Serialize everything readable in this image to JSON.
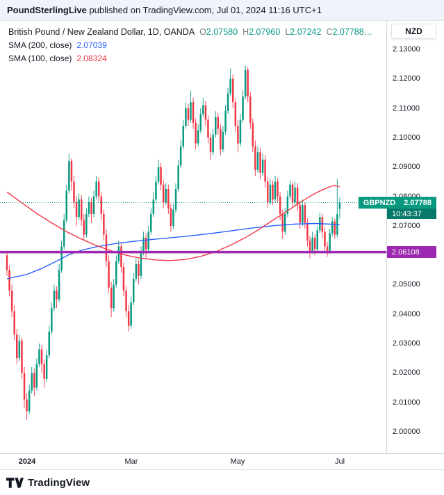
{
  "banner": {
    "brand": "PoundSterlingLive",
    "text": " published on TradingView.com, Jul 01, 2024 11:16 UTC+1"
  },
  "legend": {
    "title": "British Pound / New Zealand Dollar, 1D, OANDA",
    "ohlc": [
      {
        "k": "O",
        "v": "2.07580"
      },
      {
        "k": "H",
        "v": "2.07960"
      },
      {
        "k": "L",
        "v": "2.07242"
      },
      {
        "k": "C",
        "v": "2.07788…"
      }
    ],
    "sma200": {
      "label": "SMA (200, close)",
      "value": "2.07039",
      "color": "#2962ff"
    },
    "sma100": {
      "label": "SMA (100, close)",
      "value": "2.08324",
      "color": "#f23645"
    }
  },
  "axis": {
    "currency": "NZD",
    "price_badge": {
      "symbol": "GBPNZD",
      "price": "2.07788",
      "countdown": "10:43:37",
      "color": "#089981"
    },
    "level_badge": {
      "price": "2.06108",
      "color": "#9c27b0"
    }
  },
  "footer": {
    "brand": "TradingView"
  },
  "chart_data": {
    "type": "candlestick",
    "title": "British Pound / New Zealand Dollar",
    "symbol": "GBPNZD",
    "timeframe": "1D",
    "exchange": "OANDA",
    "ylim": [
      2.0,
      2.13
    ],
    "y_ticks": [
      "2.13000",
      "2.12000",
      "2.11000",
      "2.10000",
      "2.09000",
      "2.08000",
      "2.07000",
      "2.06000",
      "2.05000",
      "2.04000",
      "2.03000",
      "2.02000",
      "2.01000",
      "2.00000"
    ],
    "x_axis_labels": [
      {
        "text": "2024",
        "index": 8,
        "bold": true
      },
      {
        "text": "Mar",
        "index": 50,
        "bold": false
      },
      {
        "text": "May",
        "index": 93,
        "bold": false
      },
      {
        "text": "Jul",
        "index": 134,
        "bold": false
      }
    ],
    "last_price": 2.07788,
    "up_color": "#089981",
    "down_color": "#f23645",
    "levels": [
      {
        "name": "support-line",
        "price": 2.06108,
        "color": "#9c27b0"
      }
    ],
    "overlays": [
      {
        "name": "SMA 200",
        "color": "#2962ff",
        "points": [
          [
            0,
            2.052
          ],
          [
            8,
            2.0535
          ],
          [
            14,
            2.0555
          ],
          [
            20,
            2.058
          ],
          [
            25,
            2.0602
          ],
          [
            30,
            2.0617
          ],
          [
            36,
            2.0629
          ],
          [
            44,
            2.064
          ],
          [
            52,
            2.0648
          ],
          [
            60,
            2.0655
          ],
          [
            68,
            2.0661
          ],
          [
            76,
            2.0668
          ],
          [
            84,
            2.0676
          ],
          [
            92,
            2.0685
          ],
          [
            100,
            2.0694
          ],
          [
            108,
            2.0701
          ],
          [
            116,
            2.0706
          ],
          [
            124,
            2.0708
          ],
          [
            130,
            2.0706
          ],
          [
            134,
            2.0704
          ]
        ]
      },
      {
        "name": "SMA 100",
        "color": "#f23645",
        "points": [
          [
            0,
            2.0815
          ],
          [
            6,
            2.0778
          ],
          [
            12,
            2.0742
          ],
          [
            18,
            2.071
          ],
          [
            24,
            2.068
          ],
          [
            30,
            2.0655
          ],
          [
            36,
            2.0633
          ],
          [
            42,
            2.0615
          ],
          [
            48,
            2.06
          ],
          [
            54,
            2.059
          ],
          [
            60,
            2.0584
          ],
          [
            66,
            2.0582
          ],
          [
            72,
            2.0586
          ],
          [
            78,
            2.0596
          ],
          [
            84,
            2.0612
          ],
          [
            90,
            2.0634
          ],
          [
            96,
            2.066
          ],
          [
            100,
            2.068
          ],
          [
            104,
            2.0702
          ],
          [
            108,
            2.0724
          ],
          [
            112,
            2.0746
          ],
          [
            116,
            2.0768
          ],
          [
            120,
            2.079
          ],
          [
            124,
            2.081
          ],
          [
            127,
            2.0822
          ],
          [
            130,
            2.0833
          ],
          [
            132,
            2.0838
          ],
          [
            134,
            2.0832
          ]
        ]
      }
    ],
    "candles": [
      [
        2.06,
        2.0615,
        2.053,
        2.055
      ],
      [
        2.055,
        2.0565,
        2.046,
        2.048
      ],
      [
        2.048,
        2.05,
        2.039,
        2.041
      ],
      [
        2.041,
        2.043,
        2.031,
        2.033
      ],
      [
        2.033,
        2.035,
        2.023,
        2.025
      ],
      [
        2.025,
        2.033,
        2.024,
        2.031
      ],
      [
        2.031,
        2.032,
        2.018,
        2.02
      ],
      [
        2.02,
        2.022,
        2.008,
        2.011
      ],
      [
        2.011,
        2.013,
        2.004,
        2.007
      ],
      [
        2.007,
        2.016,
        2.006,
        2.014
      ],
      [
        2.014,
        2.022,
        2.013,
        2.02
      ],
      [
        2.02,
        2.0215,
        2.012,
        2.015
      ],
      [
        2.015,
        2.025,
        2.014,
        2.023
      ],
      [
        2.023,
        2.03,
        2.022,
        2.028
      ],
      [
        2.028,
        2.0295,
        2.02,
        2.023
      ],
      [
        2.023,
        2.0245,
        2.015,
        2.018
      ],
      [
        2.018,
        2.028,
        2.017,
        2.026
      ],
      [
        2.026,
        2.036,
        2.025,
        2.034
      ],
      [
        2.034,
        2.044,
        2.033,
        2.042
      ],
      [
        2.042,
        2.05,
        2.041,
        2.048
      ],
      [
        2.048,
        2.0495,
        2.042,
        2.045
      ],
      [
        2.045,
        2.057,
        2.044,
        2.055
      ],
      [
        2.055,
        2.065,
        2.054,
        2.063
      ],
      [
        2.063,
        2.074,
        2.062,
        2.072
      ],
      [
        2.072,
        2.084,
        2.071,
        2.082
      ],
      [
        2.082,
        2.0945,
        2.081,
        2.092
      ],
      [
        2.092,
        2.093,
        2.082,
        2.085
      ],
      [
        2.085,
        2.087,
        2.076,
        2.078
      ],
      [
        2.078,
        2.08,
        2.07,
        2.073
      ],
      [
        2.073,
        2.081,
        2.072,
        2.079
      ],
      [
        2.079,
        2.0805,
        2.07,
        2.072
      ],
      [
        2.072,
        2.074,
        2.065,
        2.067
      ],
      [
        2.067,
        2.076,
        2.066,
        2.074
      ],
      [
        2.074,
        2.08,
        2.073,
        2.078
      ],
      [
        2.078,
        2.0795,
        2.071,
        2.074
      ],
      [
        2.074,
        2.082,
        2.073,
        2.08
      ],
      [
        2.08,
        2.087,
        2.079,
        2.085
      ],
      [
        2.085,
        2.0865,
        2.078,
        2.08
      ],
      [
        2.08,
        2.0815,
        2.072,
        2.074
      ],
      [
        2.074,
        2.0755,
        2.065,
        2.067
      ],
      [
        2.067,
        2.069,
        2.056,
        2.058
      ],
      [
        2.058,
        2.06,
        2.047,
        2.049
      ],
      [
        2.049,
        2.051,
        2.039,
        2.042
      ],
      [
        2.042,
        2.052,
        2.041,
        2.05
      ],
      [
        2.05,
        2.06,
        2.049,
        2.058
      ],
      [
        2.058,
        2.065,
        2.057,
        2.063
      ],
      [
        2.063,
        2.0645,
        2.054,
        2.056
      ],
      [
        2.056,
        2.0575,
        2.046,
        2.048
      ],
      [
        2.048,
        2.0495,
        2.039,
        2.041
      ],
      [
        2.041,
        2.043,
        2.034,
        2.036
      ],
      [
        2.036,
        2.046,
        2.035,
        2.044
      ],
      [
        2.044,
        2.054,
        2.043,
        2.052
      ],
      [
        2.052,
        2.059,
        2.051,
        2.057
      ],
      [
        2.057,
        2.0585,
        2.05,
        2.053
      ],
      [
        2.053,
        2.063,
        2.052,
        2.061
      ],
      [
        2.061,
        2.068,
        2.06,
        2.066
      ],
      [
        2.066,
        2.0675,
        2.059,
        2.062
      ],
      [
        2.062,
        2.07,
        2.061,
        2.068
      ],
      [
        2.068,
        2.076,
        2.067,
        2.074
      ],
      [
        2.074,
        2.0815,
        2.073,
        2.079
      ],
      [
        2.079,
        2.087,
        2.078,
        2.085
      ],
      [
        2.085,
        2.0925,
        2.084,
        2.09
      ],
      [
        2.09,
        2.0915,
        2.082,
        2.084
      ],
      [
        2.084,
        2.0855,
        2.076,
        2.078
      ],
      [
        2.078,
        2.0845,
        2.077,
        2.0825
      ],
      [
        2.0825,
        2.084,
        2.074,
        2.076
      ],
      [
        2.076,
        2.0775,
        2.068,
        2.07
      ],
      [
        2.07,
        2.0775,
        2.069,
        2.0755
      ],
      [
        2.0755,
        2.0845,
        2.0745,
        2.0825
      ],
      [
        2.0825,
        2.0925,
        2.0815,
        2.0905
      ],
      [
        2.0905,
        2.099,
        2.0895,
        2.097
      ],
      [
        2.097,
        2.106,
        2.096,
        2.104
      ],
      [
        2.104,
        2.112,
        2.103,
        2.11
      ],
      [
        2.11,
        2.1115,
        2.104,
        2.106
      ],
      [
        2.106,
        2.116,
        2.105,
        2.112
      ],
      [
        2.112,
        2.1135,
        2.103,
        2.105
      ],
      [
        2.105,
        2.1065,
        2.096,
        2.098
      ],
      [
        2.098,
        2.1045,
        2.097,
        2.1025
      ],
      [
        2.1025,
        2.11,
        2.1015,
        2.108
      ],
      [
        2.108,
        2.1135,
        2.107,
        2.111
      ],
      [
        2.111,
        2.1125,
        2.104,
        2.106
      ],
      [
        2.106,
        2.1075,
        2.098,
        2.1
      ],
      [
        2.1,
        2.1015,
        2.0925,
        2.095
      ],
      [
        2.095,
        2.103,
        2.094,
        2.101
      ],
      [
        2.101,
        2.109,
        2.1,
        2.107
      ],
      [
        2.107,
        2.1085,
        2.101,
        2.103
      ],
      [
        2.103,
        2.1045,
        2.094,
        2.096
      ],
      [
        2.096,
        2.104,
        2.095,
        2.102
      ],
      [
        2.102,
        2.111,
        2.101,
        2.109
      ],
      [
        2.109,
        2.117,
        2.108,
        2.115
      ],
      [
        2.115,
        2.1235,
        2.114,
        2.12
      ],
      [
        2.12,
        2.1215,
        2.11,
        2.112
      ],
      [
        2.112,
        2.1135,
        2.102,
        2.104
      ],
      [
        2.104,
        2.106,
        2.095,
        2.098
      ],
      [
        2.098,
        2.108,
        2.097,
        2.106
      ],
      [
        2.106,
        2.116,
        2.105,
        2.114
      ],
      [
        2.114,
        2.1245,
        2.113,
        2.123
      ],
      [
        2.123,
        2.124,
        2.112,
        2.114
      ],
      [
        2.114,
        2.1155,
        2.103,
        2.105
      ],
      [
        2.105,
        2.1065,
        2.095,
        2.097
      ],
      [
        2.097,
        2.099,
        2.087,
        2.089
      ],
      [
        2.089,
        2.097,
        2.088,
        2.095
      ],
      [
        2.095,
        2.0965,
        2.086,
        2.088
      ],
      [
        2.088,
        2.0945,
        2.087,
        2.0925
      ],
      [
        2.0925,
        2.094,
        2.083,
        2.085
      ],
      [
        2.085,
        2.0865,
        2.076,
        2.078
      ],
      [
        2.078,
        2.086,
        2.077,
        2.084
      ],
      [
        2.084,
        2.0855,
        2.077,
        2.079
      ],
      [
        2.079,
        2.087,
        2.078,
        2.085
      ],
      [
        2.085,
        2.0862,
        2.078,
        2.08
      ],
      [
        2.08,
        2.0815,
        2.072,
        2.074
      ],
      [
        2.074,
        2.0755,
        2.0655,
        2.068
      ],
      [
        2.068,
        2.076,
        2.067,
        2.074
      ],
      [
        2.074,
        2.082,
        2.073,
        2.08
      ],
      [
        2.08,
        2.0855,
        2.079,
        2.084
      ],
      [
        2.084,
        2.085,
        2.076,
        2.078
      ],
      [
        2.078,
        2.085,
        2.077,
        2.083
      ],
      [
        2.083,
        2.0845,
        2.075,
        2.077
      ],
      [
        2.077,
        2.0785,
        2.069,
        2.071
      ],
      [
        2.071,
        2.079,
        2.07,
        2.077
      ],
      [
        2.077,
        2.078,
        2.069,
        2.071
      ],
      [
        2.071,
        2.0725,
        2.063,
        2.065
      ],
      [
        2.065,
        2.0665,
        2.059,
        2.0615
      ],
      [
        2.0615,
        2.068,
        2.0605,
        2.066
      ],
      [
        2.066,
        2.0672,
        2.06,
        2.062
      ],
      [
        2.062,
        2.07,
        2.061,
        2.0685
      ],
      [
        2.0685,
        2.0745,
        2.0675,
        2.073
      ],
      [
        2.073,
        2.074,
        2.066,
        2.068
      ],
      [
        2.068,
        2.0695,
        2.061,
        2.063
      ],
      [
        2.063,
        2.0645,
        2.0595,
        2.0615
      ],
      [
        2.0615,
        2.069,
        2.0605,
        2.0675
      ],
      [
        2.0675,
        2.073,
        2.0665,
        2.0715
      ],
      [
        2.0715,
        2.0725,
        2.0655,
        2.067
      ],
      [
        2.067,
        2.086,
        2.066,
        2.074
      ],
      [
        2.0758,
        2.0796,
        2.07242,
        2.07788
      ]
    ]
  }
}
